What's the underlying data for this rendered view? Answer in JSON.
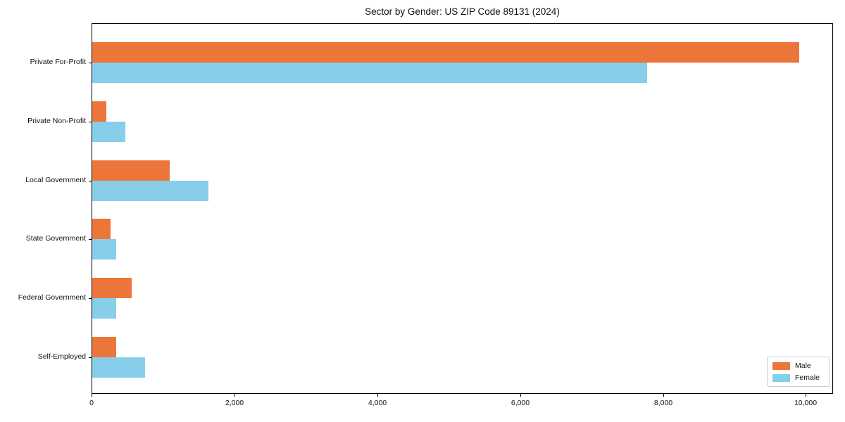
{
  "chart_data": {
    "type": "bar",
    "orientation": "horizontal",
    "title": "Sector by Gender: US ZIP Code 89131 (2024)",
    "categories": [
      "Private For-Profit",
      "Private Non-Profit",
      "Local Government",
      "State Government",
      "Federal Government",
      "Self-Employed"
    ],
    "series": [
      {
        "name": "Male",
        "color": "#ec7639",
        "values": [
          9900,
          200,
          1080,
          260,
          550,
          335
        ]
      },
      {
        "name": "Female",
        "color": "#87ceeb",
        "values": [
          7770,
          465,
          1630,
          335,
          335,
          740
        ]
      }
    ],
    "xlim": [
      0,
      10380
    ],
    "xticks": {
      "values": [
        0,
        2000,
        4000,
        6000,
        8000,
        10000
      ],
      "labels": [
        "0",
        "2,000",
        "4,000",
        "6,000",
        "8,000",
        "10,000"
      ]
    },
    "ylabel": "",
    "xlabel": "",
    "grid": false,
    "legend_position": "lower right",
    "colors": {
      "male": "#ec7639",
      "female": "#87ceeb",
      "axis": "#000000",
      "legend_border": "#cccccc",
      "text": "#111111",
      "background": "#ffffff"
    }
  }
}
